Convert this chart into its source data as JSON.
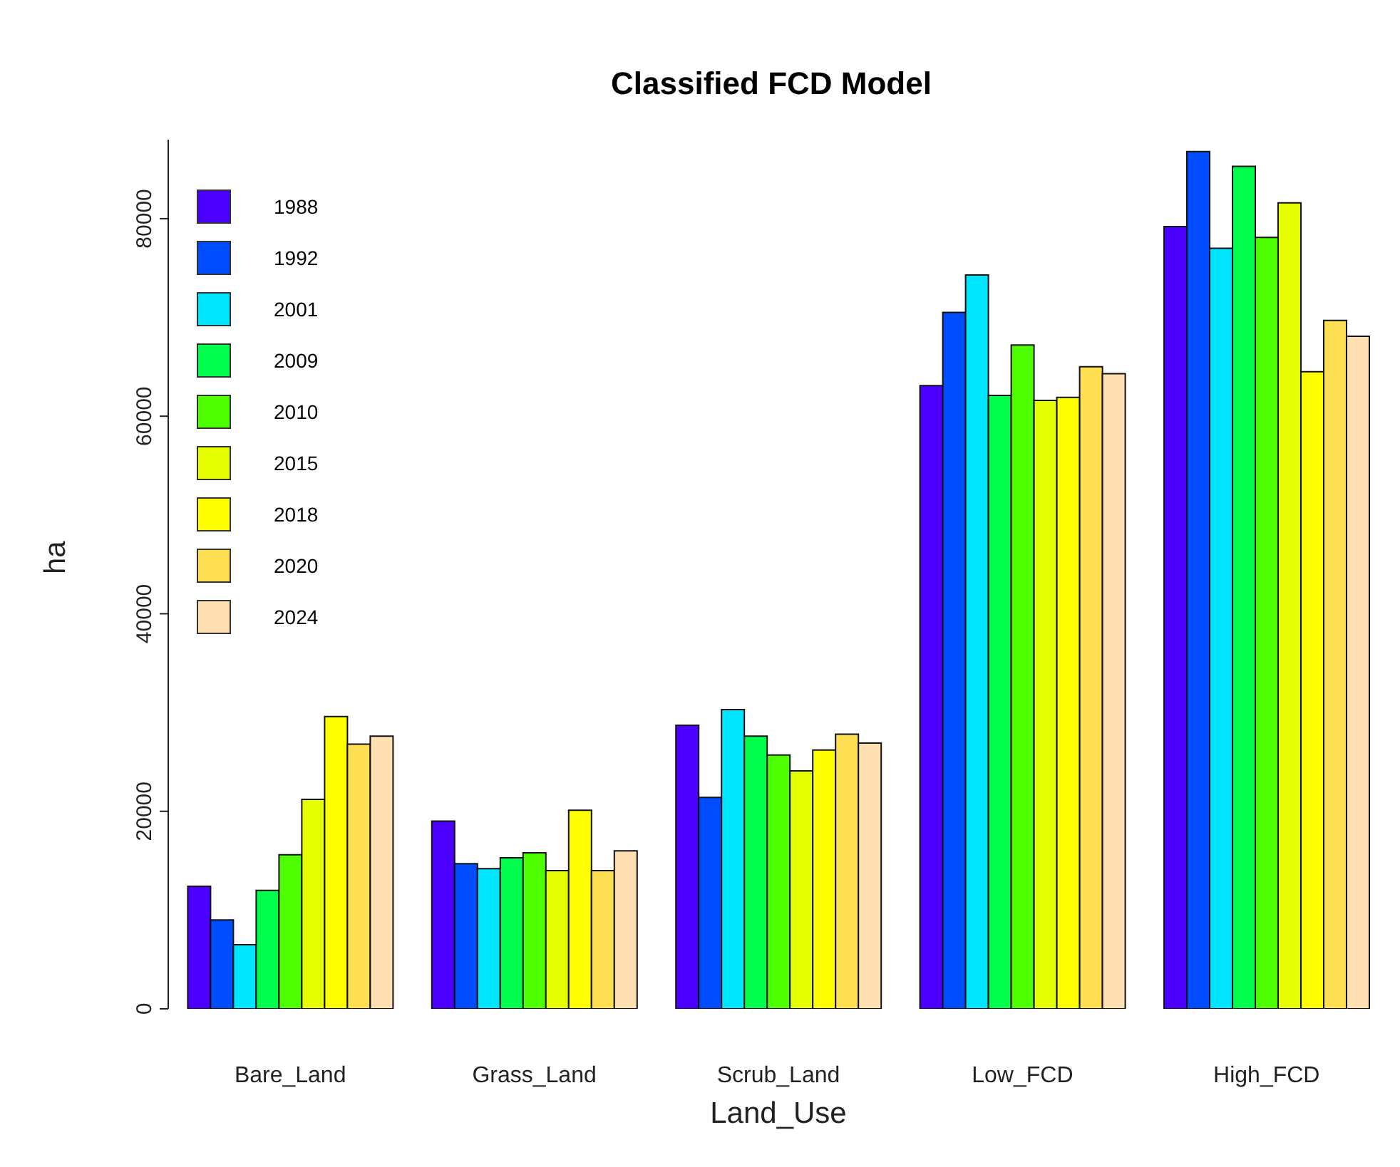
{
  "chart_data": {
    "type": "bar",
    "title": "Classified FCD Model",
    "xlabel": "Land_Use",
    "ylabel": "ha",
    "categories": [
      "Bare_Land",
      "Grass_Land",
      "Scrub_Land",
      "Low_FCD",
      "High_FCD"
    ],
    "series": [
      {
        "name": "1988",
        "color": "#4c00ff",
        "values": [
          12400,
          19000,
          28700,
          63100,
          79200
        ]
      },
      {
        "name": "1992",
        "color": "#004cff",
        "values": [
          9000,
          14700,
          21400,
          70500,
          86800
        ]
      },
      {
        "name": "2001",
        "color": "#00e5ff",
        "values": [
          6500,
          14200,
          30300,
          74300,
          77000
        ]
      },
      {
        "name": "2009",
        "color": "#00ff4d",
        "values": [
          12000,
          15300,
          27600,
          62100,
          85300
        ]
      },
      {
        "name": "2010",
        "color": "#4dff00",
        "values": [
          15600,
          15800,
          25700,
          67200,
          78100
        ]
      },
      {
        "name": "2015",
        "color": "#e6ff00",
        "values": [
          21200,
          14000,
          24100,
          61600,
          81600
        ]
      },
      {
        "name": "2018",
        "color": "#ffff00",
        "values": [
          29600,
          20100,
          26200,
          61900,
          64500
        ]
      },
      {
        "name": "2020",
        "color": "#ffe053",
        "values": [
          26800,
          14000,
          27800,
          65000,
          69700
        ]
      },
      {
        "name": "2024",
        "color": "#ffe0b3",
        "values": [
          27600,
          16000,
          26900,
          64300,
          68100
        ]
      }
    ],
    "ylim": [
      0,
      88000
    ],
    "yticks": [
      0,
      20000,
      40000,
      60000,
      80000
    ],
    "grid": false,
    "legend": "top left"
  }
}
